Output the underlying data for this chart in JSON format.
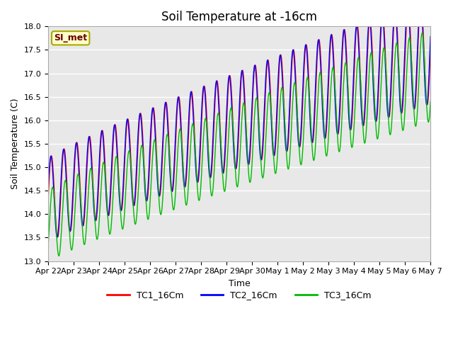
{
  "title": "Soil Temperature at -16cm",
  "xlabel": "Time",
  "ylabel": "Soil Temperature (C)",
  "ylim": [
    13.0,
    18.0
  ],
  "yticks": [
    13.0,
    13.5,
    14.0,
    14.5,
    15.0,
    15.5,
    16.0,
    16.5,
    17.0,
    17.5,
    18.0
  ],
  "x_tick_labels": [
    "Apr 22",
    "Apr 23",
    "Apr 24",
    "Apr 25",
    "Apr 26",
    "Apr 27",
    "Apr 28",
    "Apr 29",
    "Apr 30",
    "May 1",
    "May 2",
    "May 3",
    "May 4",
    "May 5",
    "May 6",
    "May 7"
  ],
  "background_color": "#e8e8e8",
  "grid_color": "#ffffff",
  "line_colors": [
    "#ff0000",
    "#0000ff",
    "#00bb00"
  ],
  "line_labels": [
    "TC1_16Cm",
    "TC2_16Cm",
    "TC3_16Cm"
  ],
  "annotation_text": "SI_met",
  "annotation_bg": "#ffffcc",
  "annotation_border": "#aaaa00",
  "title_fontsize": 12,
  "label_fontsize": 9,
  "tick_fontsize": 8,
  "legend_fontsize": 9,
  "num_points": 1000
}
